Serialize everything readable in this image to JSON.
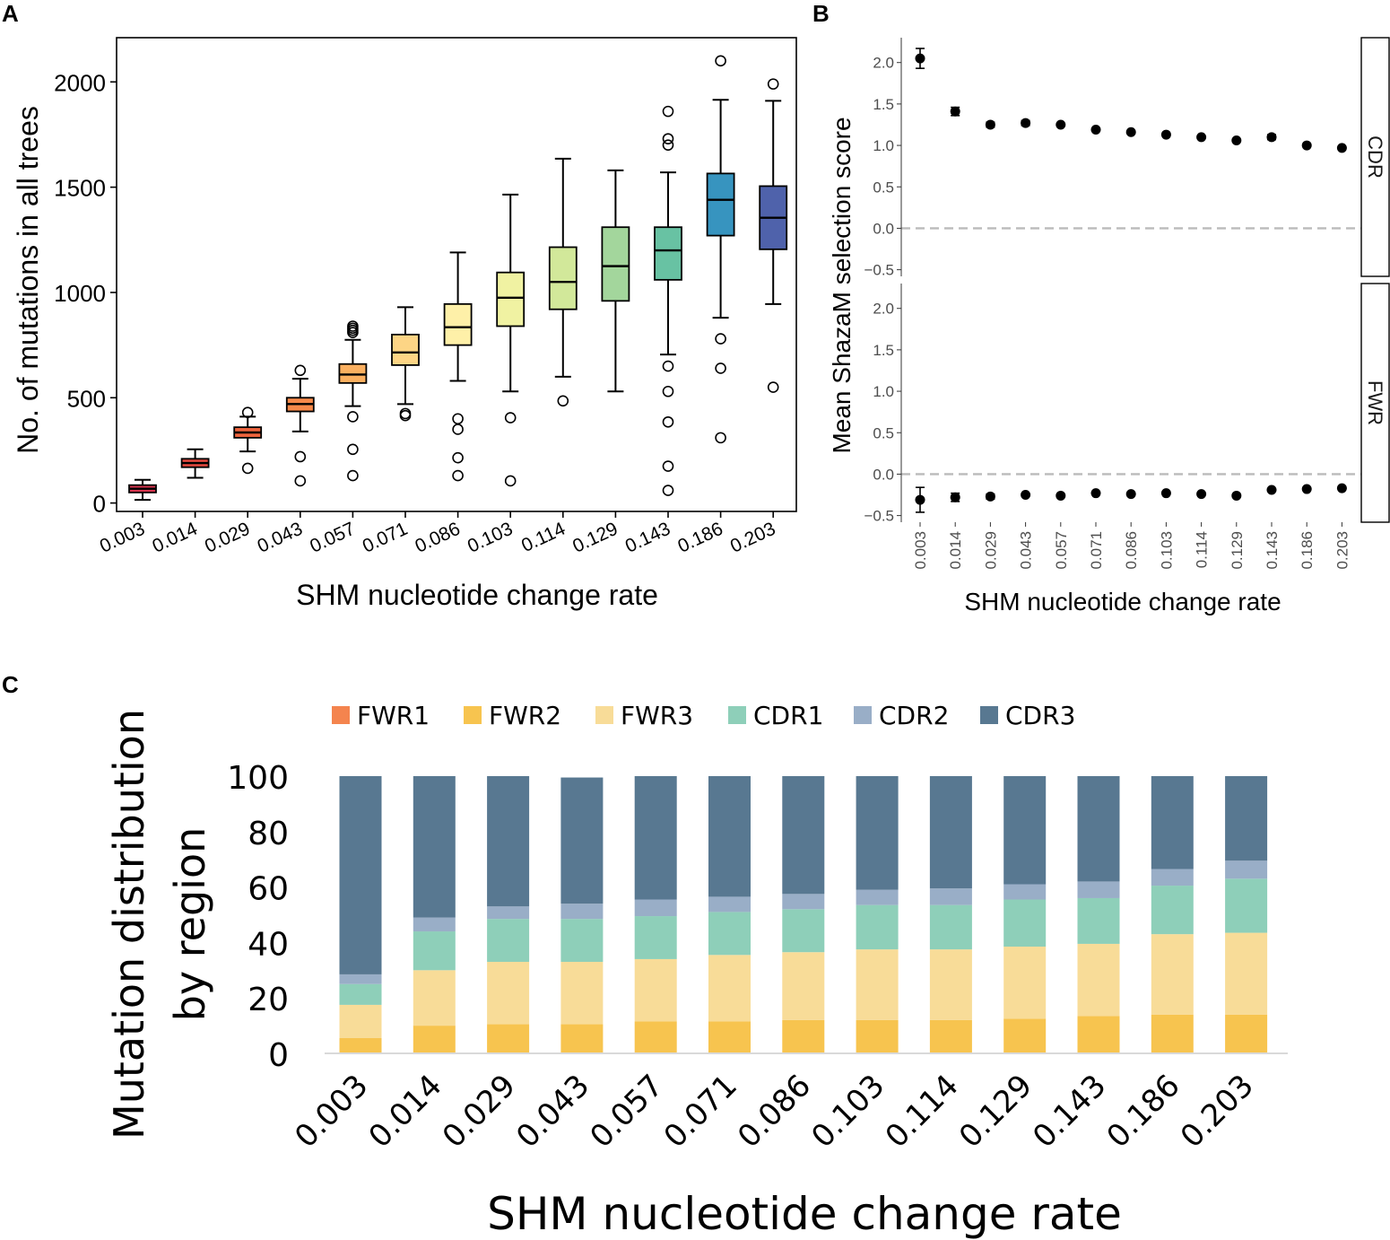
{
  "panels": {
    "a": "A",
    "b": "B",
    "c": "C"
  },
  "colors": {
    "box_fills": [
      "#d8354f",
      "#e2483e",
      "#ed643e",
      "#f5894a",
      "#fbb060",
      "#fdd585",
      "#fef0a8",
      "#f0f2a2",
      "#d2e89a",
      "#a3d69c",
      "#68c2a3",
      "#3794bf",
      "#4f62ab"
    ],
    "stack": {
      "FWR1": "#f4844e",
      "FWR2": "#f7c44f",
      "FWR3": "#f8dc98",
      "CDR1": "#8ecfb9",
      "CDR2": "#99aec7",
      "CDR3": "#587891"
    },
    "axis_text": "#4d4d4d",
    "dashed": "#bbbbbb"
  },
  "chart_data": [
    {
      "type": "box",
      "title": "",
      "xlabel": "SHM nucleotide change rate",
      "ylabel": "No. of mutations in all trees",
      "ylim": [
        -40,
        2210
      ],
      "yticks": [
        0,
        500,
        1000,
        1500,
        2000
      ],
      "ytick_labels": [
        "0",
        "500",
        "1000",
        "1500",
        "2000"
      ],
      "categories": [
        "0.003",
        "0.014",
        "0.029",
        "0.043",
        "0.057",
        "0.071",
        "0.086",
        "0.103",
        "0.114",
        "0.129",
        "0.143",
        "0.186",
        "0.203"
      ],
      "boxes": [
        {
          "whisker_low": 15,
          "q1": 50,
          "median": 68,
          "q3": 85,
          "whisker_high": 110,
          "outliers": []
        },
        {
          "whisker_low": 120,
          "q1": 170,
          "median": 190,
          "q3": 210,
          "whisker_high": 255,
          "outliers": []
        },
        {
          "whisker_low": 245,
          "q1": 310,
          "median": 335,
          "q3": 360,
          "whisker_high": 410,
          "outliers": [
            430,
            165
          ]
        },
        {
          "whisker_low": 340,
          "q1": 435,
          "median": 470,
          "q3": 500,
          "whisker_high": 590,
          "outliers": [
            630,
            220,
            105
          ]
        },
        {
          "whisker_low": 460,
          "q1": 570,
          "median": 610,
          "q3": 660,
          "whisker_high": 775,
          "outliers": [
            810,
            820,
            830,
            840,
            410,
            255,
            130
          ]
        },
        {
          "whisker_low": 470,
          "q1": 655,
          "median": 715,
          "q3": 800,
          "whisker_high": 930,
          "outliers": [
            425,
            415
          ]
        },
        {
          "whisker_low": 580,
          "q1": 750,
          "median": 835,
          "q3": 945,
          "whisker_high": 1190,
          "outliers": [
            400,
            350,
            215,
            130
          ]
        },
        {
          "whisker_low": 530,
          "q1": 840,
          "median": 975,
          "q3": 1095,
          "whisker_high": 1465,
          "outliers": [
            405,
            105
          ]
        },
        {
          "whisker_low": 600,
          "q1": 920,
          "median": 1050,
          "q3": 1215,
          "whisker_high": 1635,
          "outliers": [
            485
          ]
        },
        {
          "whisker_low": 530,
          "q1": 960,
          "median": 1125,
          "q3": 1310,
          "whisker_high": 1580,
          "outliers": []
        },
        {
          "whisker_low": 705,
          "q1": 1060,
          "median": 1200,
          "q3": 1310,
          "whisker_high": 1570,
          "outliers": [
            1860,
            1730,
            1700,
            650,
            530,
            385,
            175,
            60
          ]
        },
        {
          "whisker_low": 880,
          "q1": 1270,
          "median": 1440,
          "q3": 1565,
          "whisker_high": 1915,
          "outliers": [
            2100,
            780,
            640,
            310
          ]
        },
        {
          "whisker_low": 945,
          "q1": 1205,
          "median": 1355,
          "q3": 1505,
          "whisker_high": 1910,
          "outliers": [
            1990,
            550
          ]
        }
      ]
    },
    {
      "type": "scatter",
      "title": "",
      "xlabel": "SHM nucleotide change rate",
      "ylabel": "Mean ShazaM selection score",
      "ylim": [
        -0.58,
        2.3
      ],
      "yticks": [
        -0.5,
        0,
        0.5,
        1,
        1.5,
        2
      ],
      "ytick_labels": [
        "−0.5",
        "0.0",
        "0.5",
        "1.0",
        "1.5",
        "2.0"
      ],
      "reference_line": 0,
      "x": [
        "0.003",
        "0.014",
        "0.029",
        "0.043",
        "0.057",
        "0.071",
        "0.086",
        "0.103",
        "0.114",
        "0.129",
        "0.143",
        "0.186",
        "0.203"
      ],
      "facets": [
        {
          "name": "CDR",
          "values": [
            2.05,
            1.41,
            1.25,
            1.27,
            1.25,
            1.19,
            1.16,
            1.13,
            1.1,
            1.06,
            1.1,
            1.0,
            0.97
          ],
          "errors": [
            0.12,
            0.05,
            0.03,
            0.03,
            0.02,
            0.02,
            0.02,
            0.02,
            0.02,
            0.02,
            0.03,
            0.02,
            0.02
          ]
        },
        {
          "name": "FWR",
          "values": [
            -0.31,
            -0.28,
            -0.27,
            -0.25,
            -0.26,
            -0.23,
            -0.24,
            -0.23,
            -0.24,
            -0.26,
            -0.19,
            -0.18,
            -0.17
          ],
          "errors": [
            0.15,
            0.05,
            0.03,
            0.02,
            0.02,
            0.02,
            0.02,
            0.02,
            0.02,
            0.02,
            0.02,
            0.02,
            0.02
          ]
        }
      ]
    },
    {
      "type": "bar",
      "stacked": true,
      "title": "",
      "xlabel": "SHM nucleotide change rate",
      "ylabel_lines": [
        "Mutation distribution",
        "by region"
      ],
      "ylim": [
        0,
        100
      ],
      "yticks": [
        0,
        20,
        40,
        60,
        80,
        100
      ],
      "ytick_labels": [
        "0",
        "20",
        "40",
        "60",
        "80",
        "100"
      ],
      "legend": [
        "FWR1",
        "FWR2",
        "FWR3",
        "CDR1",
        "CDR2",
        "CDR3"
      ],
      "legend_position": "top",
      "categories": [
        "0.003",
        "0.014",
        "0.029",
        "0.043",
        "0.057",
        "0.071",
        "0.086",
        "0.103",
        "0.114",
        "0.129",
        "0.143",
        "0.186",
        "0.203"
      ],
      "series": [
        {
          "name": "FWR1",
          "values": [
            0,
            0,
            0,
            0,
            0,
            0,
            0,
            0,
            0,
            0,
            0,
            0,
            0
          ]
        },
        {
          "name": "FWR2",
          "values": [
            5.5,
            10,
            10.5,
            10.5,
            11.5,
            11.5,
            12,
            12,
            12,
            12.5,
            13.5,
            14,
            14
          ]
        },
        {
          "name": "FWR3",
          "values": [
            12,
            20,
            22.5,
            22.5,
            22.5,
            24,
            24.5,
            25.5,
            25.5,
            26,
            26,
            29,
            29.5
          ]
        },
        {
          "name": "CDR1",
          "values": [
            7.5,
            14,
            15.5,
            15.5,
            15.5,
            15.5,
            15.5,
            16,
            16,
            17,
            16.5,
            17.5,
            19.5
          ]
        },
        {
          "name": "CDR2",
          "values": [
            3.5,
            5,
            4.5,
            5.5,
            6,
            5.5,
            5.5,
            5.5,
            6,
            5.5,
            6,
            6,
            6.5
          ]
        },
        {
          "name": "CDR3",
          "values": [
            71.5,
            51,
            47,
            45.5,
            44.5,
            43.5,
            42.5,
            41,
            40.5,
            39,
            38,
            33.5,
            30.5
          ]
        }
      ]
    }
  ]
}
